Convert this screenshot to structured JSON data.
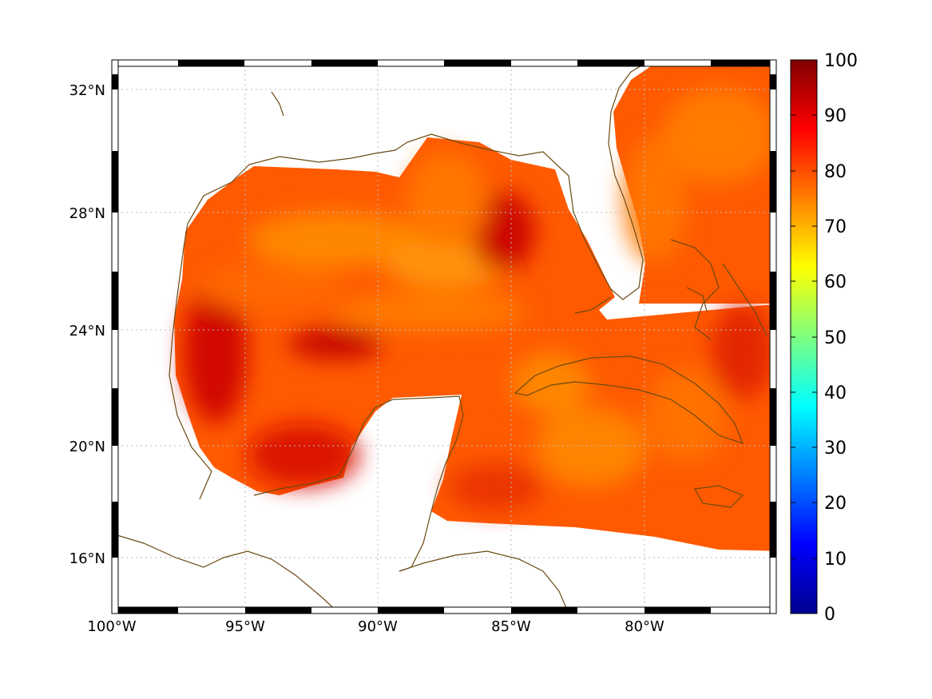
{
  "map": {
    "lon_ticks": [
      "100°W",
      "95°W",
      "90°W",
      "85°W",
      "80°W"
    ],
    "lat_ticks": [
      "32°N",
      "28°N",
      "24°N",
      "20°N",
      "16°N"
    ],
    "extent": {
      "lon_min": -100,
      "lon_max": -75,
      "lat_min": 14.2,
      "lat_max": 33
    },
    "coastline_color": "#6b4a12",
    "grid": "dotted"
  },
  "colorbar": {
    "ticks": [
      "100",
      "90",
      "80",
      "70",
      "60",
      "50",
      "40",
      "30",
      "20",
      "10",
      "0"
    ],
    "range": [
      0,
      100
    ],
    "colormap": "jet"
  },
  "field": {
    "dominant_range": [
      72,
      98
    ],
    "dominant_colors": [
      "#ff3a00",
      "#ff5a00",
      "#ff8c00",
      "#ff6a00",
      "#cc0000"
    ]
  }
}
